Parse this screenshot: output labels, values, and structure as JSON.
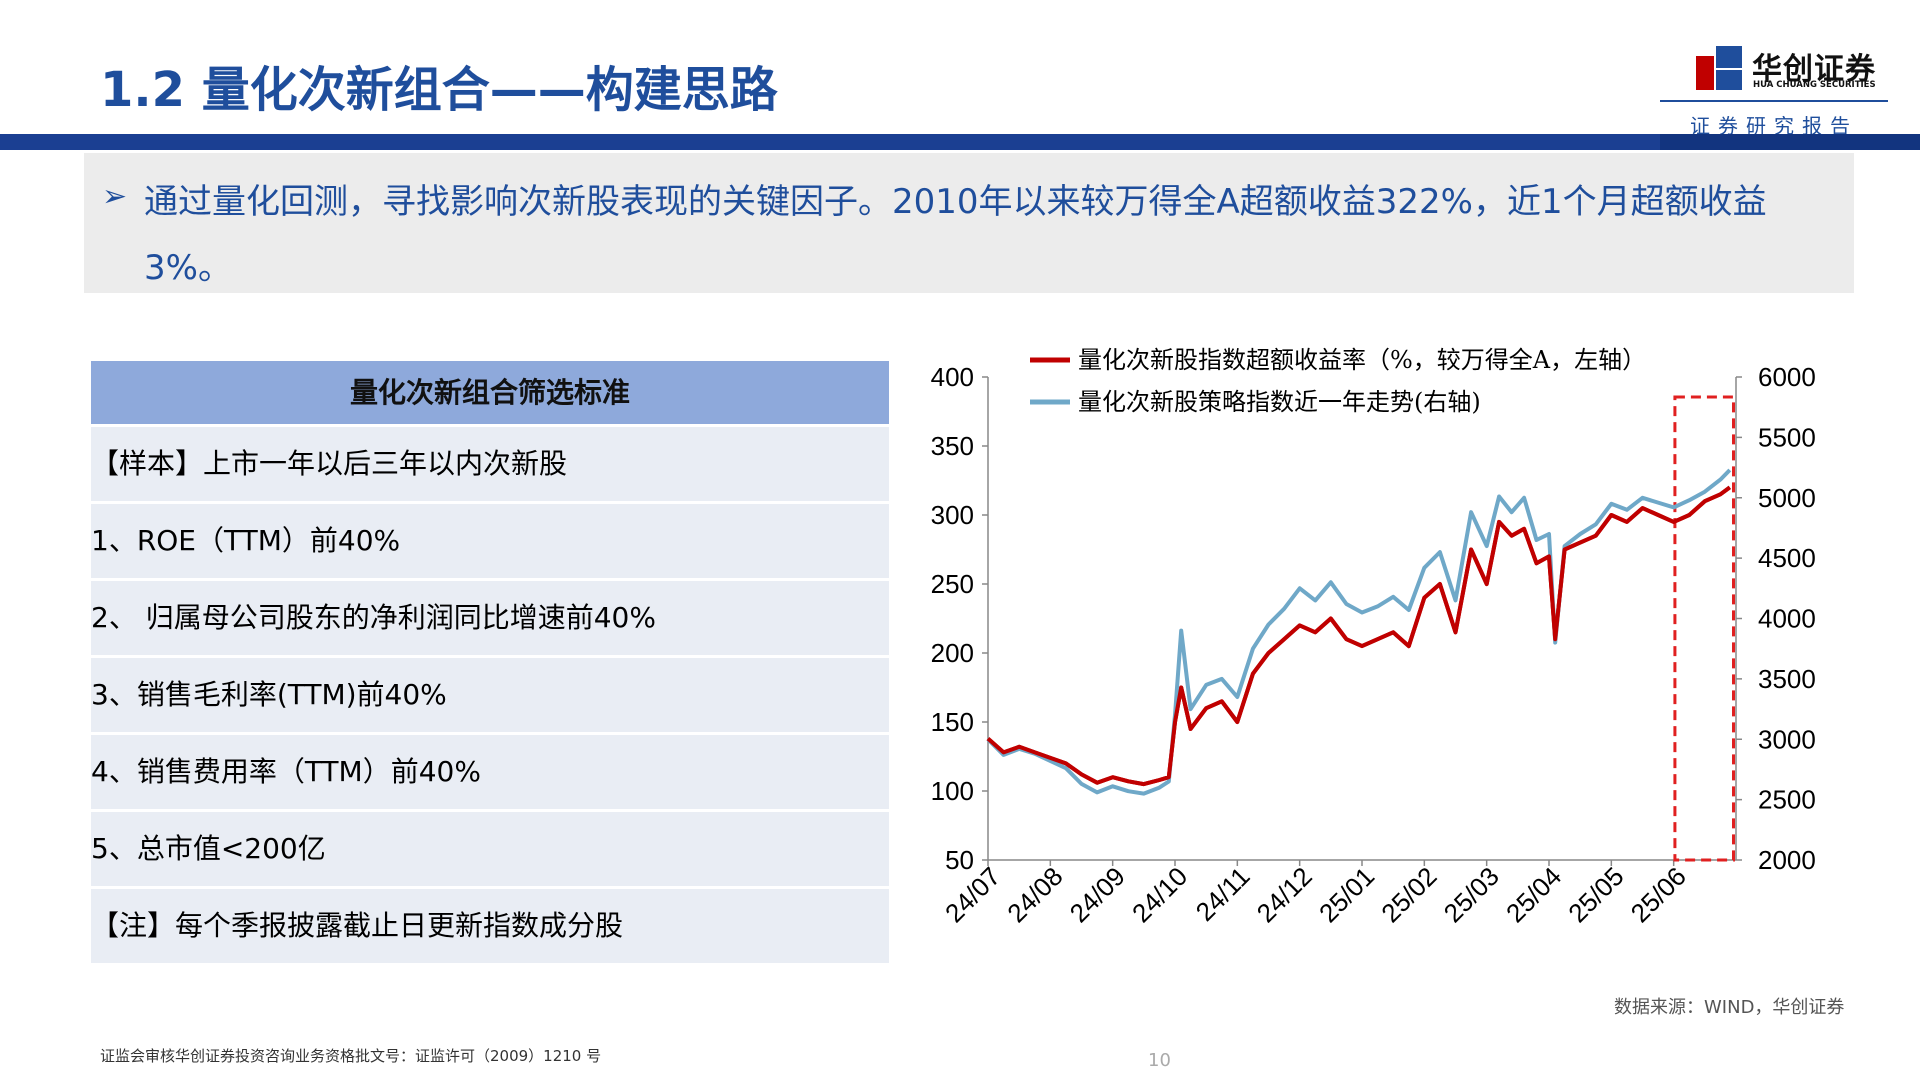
{
  "header": {
    "title": "1.2 量化次新组合——构建思路",
    "brand_cn": "华创证券",
    "brand_en": "HUA CHUANG SECURITIES",
    "brand_tag": "证券研究报告"
  },
  "summary": {
    "bullet_icon": "arrow-right-icon",
    "text": "通过量化回测，寻找影响次新股表现的关键因子。2010年以来较万得全A超额收益322%，近1个月超额收益3%。"
  },
  "criteria_table": {
    "title": "量化次新组合筛选标准",
    "rows": [
      "【样本】上市一年以后三年以内次新股",
      "1、ROE（TTM）前40%",
      "2、 归属母公司股东的净利润同比增速前40%",
      "3、销售毛利率(TTM)前40%",
      "4、销售费用率（TTM）前40%",
      "5、总市值<200亿",
      "【注】每个季报披露截止日更新指数成分股"
    ]
  },
  "chart_data": {
    "type": "line",
    "title": "",
    "xlabel": "",
    "ylabel": "",
    "x_ticks": [
      "24/07",
      "24/08",
      "24/09",
      "24/10",
      "24/11",
      "24/12",
      "25/01",
      "25/02",
      "25/03",
      "25/04",
      "25/05",
      "25/06"
    ],
    "y_left": {
      "range": [
        50,
        400
      ],
      "ticks": [
        "400",
        "350",
        "300",
        "250",
        "200",
        "150",
        "100",
        "50"
      ]
    },
    "y_right": {
      "range": [
        2000,
        6000
      ],
      "ticks": [
        "6000",
        "5500",
        "5000",
        "4500",
        "4000",
        "3500",
        "3000",
        "2500",
        "2000"
      ]
    },
    "legend_position": "top",
    "grid": false,
    "highlight": "last-month dashed red box",
    "series": [
      {
        "name": "量化次新股指数超额收益率（%，较万得全A，左轴）",
        "axis": "left",
        "color": "#C00000",
        "x": [
          0,
          0.25,
          0.5,
          0.75,
          1,
          1.25,
          1.5,
          1.75,
          2,
          2.25,
          2.5,
          2.75,
          2.9,
          3,
          3.1,
          3.25,
          3.5,
          3.75,
          4,
          4.25,
          4.5,
          4.75,
          5,
          5.25,
          5.5,
          5.75,
          6,
          6.25,
          6.5,
          6.75,
          7,
          7.25,
          7.5,
          7.75,
          8,
          8.2,
          8.4,
          8.6,
          8.8,
          9,
          9.1,
          9.25,
          9.5,
          9.75,
          10,
          10.25,
          10.5,
          10.75,
          11,
          11.25,
          11.5,
          11.75,
          11.9
        ],
        "values": [
          138,
          128,
          132,
          128,
          124,
          120,
          112,
          106,
          110,
          107,
          105,
          108,
          110,
          150,
          175,
          145,
          160,
          165,
          150,
          185,
          200,
          210,
          220,
          215,
          225,
          210,
          205,
          210,
          215,
          205,
          240,
          250,
          215,
          275,
          250,
          295,
          285,
          290,
          265,
          270,
          210,
          275,
          280,
          285,
          300,
          295,
          305,
          300,
          295,
          300,
          310,
          315,
          320
        ]
      },
      {
        "name": "量化次新股策略指数近一年走势(右轴)",
        "axis": "right",
        "color": "#6FA8C8",
        "x": [
          0,
          0.25,
          0.5,
          0.75,
          1,
          1.25,
          1.5,
          1.75,
          2,
          2.25,
          2.5,
          2.75,
          2.9,
          3,
          3.1,
          3.25,
          3.5,
          3.75,
          4,
          4.25,
          4.5,
          4.75,
          5,
          5.25,
          5.5,
          5.75,
          6,
          6.25,
          6.5,
          6.75,
          7,
          7.25,
          7.5,
          7.75,
          8,
          8.2,
          8.4,
          8.6,
          8.8,
          9,
          9.1,
          9.25,
          9.5,
          9.75,
          10,
          10.25,
          10.5,
          10.75,
          11,
          11.25,
          11.5,
          11.75,
          11.9
        ],
        "values": [
          3000,
          2870,
          2920,
          2880,
          2820,
          2760,
          2630,
          2560,
          2610,
          2570,
          2550,
          2600,
          2650,
          3200,
          3900,
          3250,
          3450,
          3500,
          3350,
          3750,
          3950,
          4080,
          4250,
          4150,
          4300,
          4120,
          4050,
          4100,
          4180,
          4070,
          4420,
          4550,
          4150,
          4880,
          4600,
          5010,
          4880,
          5000,
          4650,
          4700,
          3800,
          4600,
          4700,
          4780,
          4950,
          4900,
          5000,
          4960,
          4920,
          4980,
          5050,
          5150,
          5230
        ]
      }
    ]
  },
  "source_note": "数据来源：WIND，华创证券",
  "footer": {
    "license": "证监会审核华创证券投资咨询业务资格批文号：证监许可（2009）1210 号",
    "page_number": "10"
  }
}
